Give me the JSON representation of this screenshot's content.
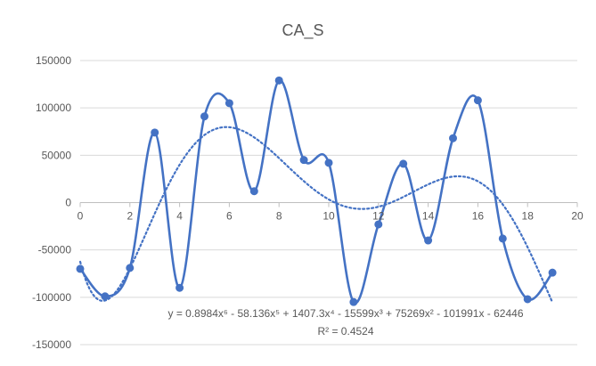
{
  "chart_data": {
    "type": "line",
    "title": "CA_S",
    "xlim": [
      0,
      20
    ],
    "ylim": [
      -150000,
      150000
    ],
    "x_ticks": [
      "0",
      "2",
      "4",
      "6",
      "8",
      "10",
      "12",
      "14",
      "16",
      "18",
      "20"
    ],
    "y_ticks": [
      "150000",
      "100000",
      "50000",
      "0",
      "-50000",
      "-100000",
      "-150000"
    ],
    "grid": "horizontal",
    "series": [
      {
        "x": [
          0,
          1,
          2,
          3,
          4,
          5,
          6,
          7,
          8,
          9,
          10,
          11,
          12,
          13,
          14,
          15,
          16,
          17,
          18,
          19
        ],
        "values": [
          -70000,
          -99000,
          -69000,
          74000,
          -90000,
          91000,
          105000,
          12000,
          129000,
          45000,
          42000,
          -105000,
          -23000,
          41000,
          -40000,
          68000,
          108000,
          -38000,
          -102000,
          -74000
        ],
        "color": "#4472C4",
        "style": "smooth line with markers"
      }
    ],
    "trendline": {
      "type": "polynomial",
      "order": 6,
      "style": "dotted",
      "color": "#4472C4",
      "coefficients": [
        -62446,
        -101991,
        75269,
        -15599,
        1407.3,
        -58.136,
        0.8984
      ],
      "equation_text": "y = 0.8984x⁶ - 58.136x⁵ + 1407.3x⁴ - 15599x³ + 75269x² - 101991x - 62446",
      "r2_text": "R² = 0.4524"
    }
  }
}
